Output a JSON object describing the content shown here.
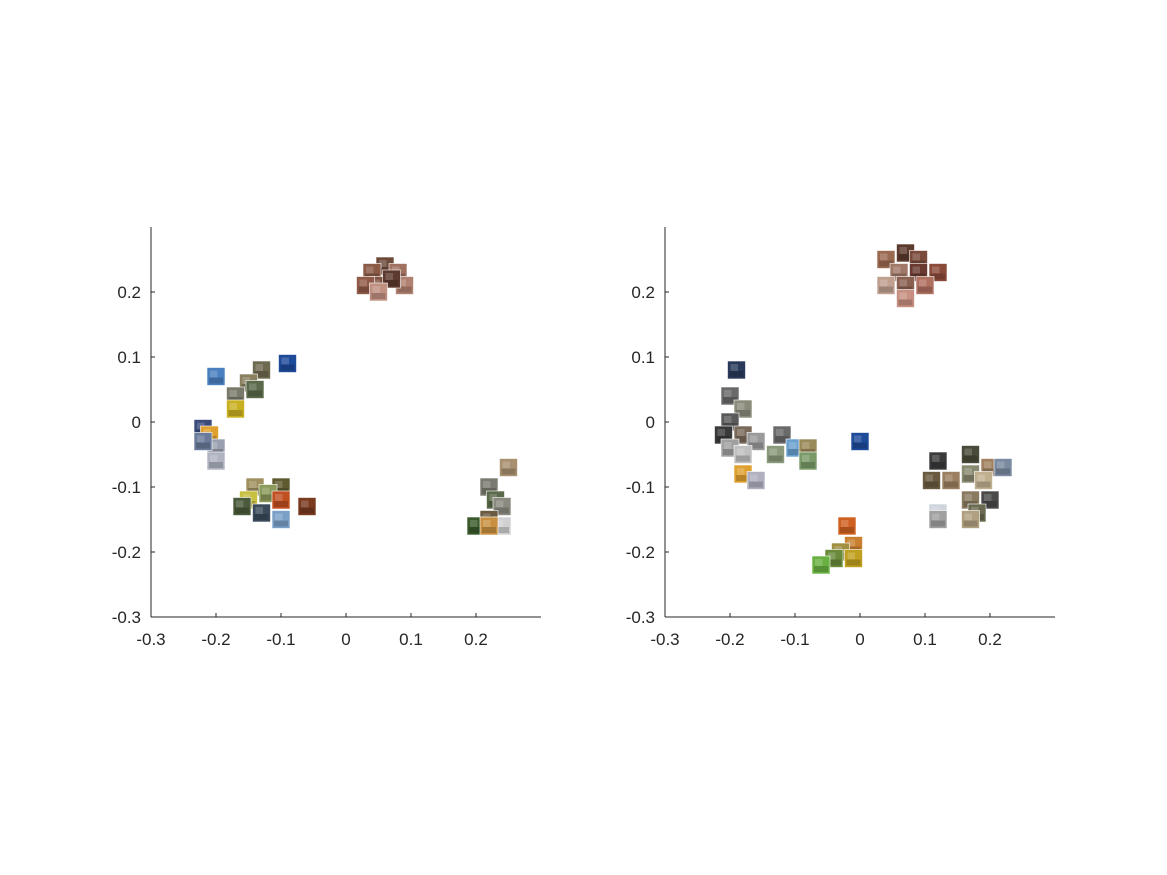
{
  "chart_data": [
    {
      "type": "scatter",
      "marker": "image-thumbnail",
      "title": "",
      "xlabel": "",
      "ylabel": "",
      "xlim": [
        -0.3,
        0.3
      ],
      "ylim": [
        -0.3,
        0.3
      ],
      "xticks": [
        "-0.3",
        "-0.2",
        "-0.1",
        "0",
        "0.1",
        "0.2"
      ],
      "yticks": [
        "0.2",
        "0.1",
        "0",
        "-0.1",
        "-0.2",
        "-0.3"
      ],
      "grid": false,
      "points": [
        {
          "x": 0.06,
          "y": 0.24,
          "color": "#6b4a3a"
        },
        {
          "x": 0.04,
          "y": 0.23,
          "color": "#8a5a45"
        },
        {
          "x": 0.08,
          "y": 0.23,
          "color": "#a07060"
        },
        {
          "x": 0.05,
          "y": 0.21,
          "color": "#7d5040"
        },
        {
          "x": 0.09,
          "y": 0.21,
          "color": "#b08070"
        },
        {
          "x": 0.03,
          "y": 0.21,
          "color": "#905a48"
        },
        {
          "x": 0.07,
          "y": 0.22,
          "color": "#5c3a2e"
        },
        {
          "x": 0.05,
          "y": 0.2,
          "color": "#c09080"
        },
        {
          "x": -0.2,
          "y": 0.07,
          "color": "#4a7fc0"
        },
        {
          "x": -0.13,
          "y": 0.08,
          "color": "#6e6a50"
        },
        {
          "x": -0.09,
          "y": 0.09,
          "color": "#1e4a9a"
        },
        {
          "x": -0.15,
          "y": 0.06,
          "color": "#8a8060"
        },
        {
          "x": -0.14,
          "y": 0.05,
          "color": "#5a6a4a"
        },
        {
          "x": -0.17,
          "y": 0.04,
          "color": "#7a7a6a"
        },
        {
          "x": -0.17,
          "y": 0.02,
          "color": "#c8b020"
        },
        {
          "x": -0.22,
          "y": -0.01,
          "color": "#3a4a7a"
        },
        {
          "x": -0.21,
          "y": -0.02,
          "color": "#e0a030"
        },
        {
          "x": -0.2,
          "y": -0.04,
          "color": "#9aa0b0"
        },
        {
          "x": -0.2,
          "y": -0.06,
          "color": "#b0b4c0"
        },
        {
          "x": -0.22,
          "y": -0.03,
          "color": "#6a7a9a"
        },
        {
          "x": -0.14,
          "y": -0.1,
          "color": "#a09060"
        },
        {
          "x": -0.1,
          "y": -0.1,
          "color": "#605a30"
        },
        {
          "x": -0.12,
          "y": -0.11,
          "color": "#8a9a5a"
        },
        {
          "x": -0.15,
          "y": -0.12,
          "color": "#c8c040"
        },
        {
          "x": -0.16,
          "y": -0.13,
          "color": "#4a5a3a"
        },
        {
          "x": -0.1,
          "y": -0.12,
          "color": "#c05020"
        },
        {
          "x": -0.06,
          "y": -0.13,
          "color": "#7a3a20"
        },
        {
          "x": -0.13,
          "y": -0.14,
          "color": "#3a4a5a"
        },
        {
          "x": -0.1,
          "y": -0.15,
          "color": "#7aa0c8"
        },
        {
          "x": 0.25,
          "y": -0.07,
          "color": "#a89070"
        },
        {
          "x": 0.22,
          "y": -0.1,
          "color": "#7a7a70"
        },
        {
          "x": 0.23,
          "y": -0.12,
          "color": "#5a6a4a"
        },
        {
          "x": 0.24,
          "y": -0.13,
          "color": "#8a8a80"
        },
        {
          "x": 0.22,
          "y": -0.15,
          "color": "#6a5a40"
        },
        {
          "x": 0.24,
          "y": -0.16,
          "color": "#d0d0d0"
        },
        {
          "x": 0.2,
          "y": -0.16,
          "color": "#3a5a2a"
        },
        {
          "x": 0.22,
          "y": -0.16,
          "color": "#c89040"
        }
      ]
    },
    {
      "type": "scatter",
      "marker": "image-thumbnail",
      "title": "",
      "xlabel": "",
      "ylabel": "",
      "xlim": [
        -0.3,
        0.3
      ],
      "ylim": [
        -0.3,
        0.3
      ],
      "xticks": [
        "-0.3",
        "-0.2",
        "-0.1",
        "0",
        "0.1",
        "0.2"
      ],
      "yticks": [
        "0.2",
        "0.1",
        "0",
        "-0.1",
        "-0.2",
        "-0.3"
      ],
      "grid": false,
      "points": [
        {
          "x": 0.07,
          "y": 0.26,
          "color": "#5c3a2e"
        },
        {
          "x": 0.04,
          "y": 0.25,
          "color": "#9a6a50"
        },
        {
          "x": 0.09,
          "y": 0.25,
          "color": "#7a4a3a"
        },
        {
          "x": 0.06,
          "y": 0.23,
          "color": "#a07868"
        },
        {
          "x": 0.09,
          "y": 0.23,
          "color": "#6a3a30"
        },
        {
          "x": 0.12,
          "y": 0.23,
          "color": "#8a4a3a"
        },
        {
          "x": 0.04,
          "y": 0.21,
          "color": "#c0a090"
        },
        {
          "x": 0.07,
          "y": 0.21,
          "color": "#8a6050"
        },
        {
          "x": 0.1,
          "y": 0.21,
          "color": "#b07060"
        },
        {
          "x": 0.07,
          "y": 0.19,
          "color": "#c89080"
        },
        {
          "x": -0.19,
          "y": 0.08,
          "color": "#2a3a5a"
        },
        {
          "x": -0.2,
          "y": 0.04,
          "color": "#6a6a6a"
        },
        {
          "x": -0.18,
          "y": 0.02,
          "color": "#8a8a7a"
        },
        {
          "x": -0.2,
          "y": 0.0,
          "color": "#5a5a5a"
        },
        {
          "x": -0.21,
          "y": -0.02,
          "color": "#3a3a3a"
        },
        {
          "x": -0.18,
          "y": -0.02,
          "color": "#7a6a5a"
        },
        {
          "x": -0.16,
          "y": -0.03,
          "color": "#9a9a9a"
        },
        {
          "x": -0.2,
          "y": -0.04,
          "color": "#a0a0a0"
        },
        {
          "x": -0.18,
          "y": -0.05,
          "color": "#c0c0c0"
        },
        {
          "x": -0.12,
          "y": -0.02,
          "color": "#6a6a6a"
        },
        {
          "x": -0.1,
          "y": -0.04,
          "color": "#6aa0d0"
        },
        {
          "x": -0.13,
          "y": -0.05,
          "color": "#8a9a7a"
        },
        {
          "x": -0.08,
          "y": -0.04,
          "color": "#9a8a5a"
        },
        {
          "x": -0.08,
          "y": -0.06,
          "color": "#7a9a6a"
        },
        {
          "x": -0.18,
          "y": -0.08,
          "color": "#e0a030"
        },
        {
          "x": -0.16,
          "y": -0.09,
          "color": "#b0b0c0"
        },
        {
          "x": 0.0,
          "y": -0.03,
          "color": "#1e4a9a"
        },
        {
          "x": -0.02,
          "y": -0.16,
          "color": "#d06020"
        },
        {
          "x": -0.01,
          "y": -0.19,
          "color": "#c88030"
        },
        {
          "x": -0.03,
          "y": -0.2,
          "color": "#a09040"
        },
        {
          "x": -0.01,
          "y": -0.21,
          "color": "#c0a020"
        },
        {
          "x": -0.04,
          "y": -0.21,
          "color": "#6a8a3a"
        },
        {
          "x": -0.06,
          "y": -0.22,
          "color": "#6ab040"
        },
        {
          "x": 0.17,
          "y": -0.05,
          "color": "#4a4a3a"
        },
        {
          "x": 0.12,
          "y": -0.06,
          "color": "#3a3a3a"
        },
        {
          "x": 0.2,
          "y": -0.07,
          "color": "#a08060"
        },
        {
          "x": 0.22,
          "y": -0.07,
          "color": "#7a8aa0"
        },
        {
          "x": 0.17,
          "y": -0.08,
          "color": "#8a8a70"
        },
        {
          "x": 0.11,
          "y": -0.09,
          "color": "#6a5a40"
        },
        {
          "x": 0.14,
          "y": -0.09,
          "color": "#9a8060"
        },
        {
          "x": 0.19,
          "y": -0.09,
          "color": "#c0b090"
        },
        {
          "x": 0.2,
          "y": -0.12,
          "color": "#4a4a4a"
        },
        {
          "x": 0.17,
          "y": -0.12,
          "color": "#8a7a60"
        },
        {
          "x": 0.12,
          "y": -0.14,
          "color": "#d0d4dc"
        },
        {
          "x": 0.18,
          "y": -0.14,
          "color": "#6a6a50"
        },
        {
          "x": 0.17,
          "y": -0.15,
          "color": "#b0a080"
        },
        {
          "x": 0.12,
          "y": -0.15,
          "color": "#a0a0a0"
        }
      ]
    }
  ]
}
